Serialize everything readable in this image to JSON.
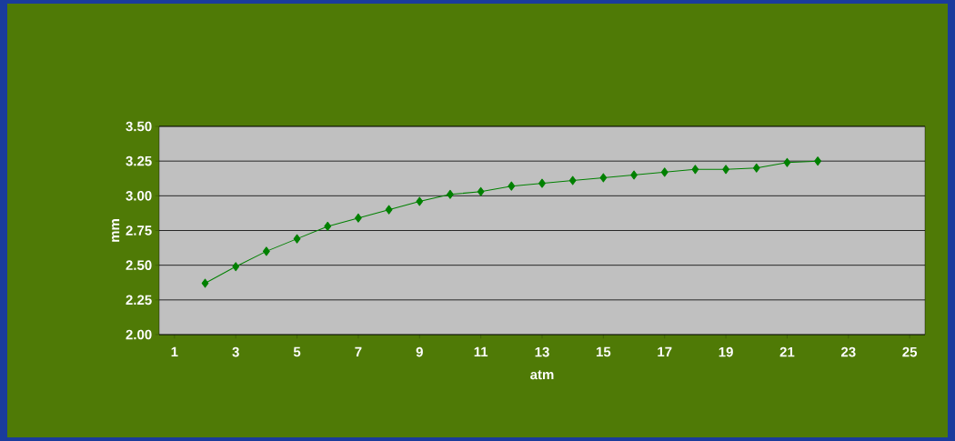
{
  "chart_data": {
    "type": "line",
    "xlabel": "atm",
    "ylabel": "mm",
    "x": [
      2,
      3,
      4,
      5,
      6,
      7,
      8,
      9,
      10,
      11,
      12,
      13,
      14,
      15,
      16,
      17,
      18,
      19,
      20,
      21,
      22
    ],
    "series": [
      {
        "color": "#008000",
        "values": [
          2.37,
          2.49,
          2.6,
          2.69,
          2.78,
          2.84,
          2.9,
          2.96,
          3.01,
          3.03,
          3.07,
          3.09,
          3.11,
          3.13,
          3.15,
          3.17,
          3.19,
          3.19,
          3.2,
          3.24,
          3.25
        ]
      }
    ],
    "xlim": [
      0.5,
      25.5
    ],
    "xticks": [
      1,
      3,
      5,
      7,
      9,
      11,
      13,
      15,
      17,
      19,
      21,
      23,
      25
    ],
    "ylim": [
      2.0,
      3.5
    ],
    "yticks": [
      {
        "value": 2.0,
        "label": "2.00"
      },
      {
        "value": 2.25,
        "label": "2.25"
      },
      {
        "value": 2.5,
        "label": "2.50"
      },
      {
        "value": 2.75,
        "label": "2.75"
      },
      {
        "value": 3.0,
        "label": "3.00"
      },
      {
        "value": 3.25,
        "label": "3.25"
      },
      {
        "value": 3.5,
        "label": "3.50"
      }
    ],
    "grid": "y",
    "marker": "diamond",
    "line_style": "solid"
  }
}
